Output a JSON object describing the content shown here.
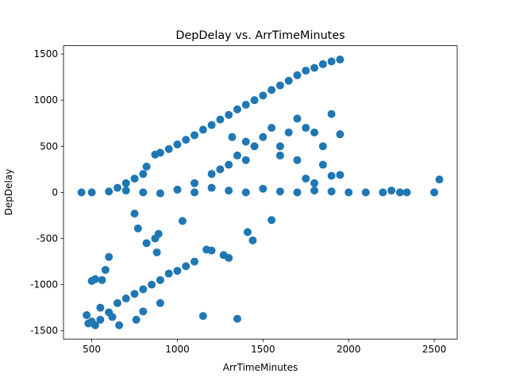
{
  "chart_data": {
    "type": "scatter",
    "title": "DepDelay vs. ArrTimeMinutes",
    "x_label": "ArrTimeMinutes",
    "y_label": "DepDelay",
    "color": "#1f77b4",
    "x": [
      870,
      900,
      950,
      1000,
      1050,
      1100,
      1150,
      1200,
      1250,
      1300,
      1350,
      1400,
      1450,
      1500,
      1550,
      1600,
      1650,
      1700,
      1750,
      1800,
      1850,
      1900,
      1950,
      650,
      700,
      750,
      800,
      820,
      440,
      500,
      600,
      700,
      800,
      900,
      1000,
      1100,
      1200,
      1300,
      1400,
      1500,
      1600,
      1700,
      1800,
      1900,
      2000,
      2100,
      2200,
      2250,
      2300,
      2340,
      2500,
      2530,
      1100,
      1200,
      1300,
      1350,
      1400,
      1450,
      1500,
      1550,
      1600,
      1650,
      1700,
      1750,
      1800,
      1850,
      1900,
      1950,
      1250,
      1320,
      1400,
      1600,
      1700,
      1800,
      1900,
      1950,
      1750,
      1850,
      750,
      770,
      820,
      870,
      890,
      880,
      1030,
      1550,
      1410,
      1440,
      1170,
      1200,
      1270,
      1300,
      600,
      580,
      500,
      520,
      560,
      470,
      500,
      520,
      550,
      600,
      650,
      700,
      750,
      800,
      850,
      900,
      950,
      1000,
      1050,
      1100,
      760,
      800,
      660,
      1150,
      1350,
      900,
      550,
      480,
      620
    ],
    "y": [
      410,
      430,
      470,
      520,
      570,
      620,
      680,
      730,
      790,
      840,
      900,
      950,
      1000,
      1050,
      1110,
      1160,
      1210,
      1270,
      1320,
      1350,
      1390,
      1420,
      1440,
      50,
      100,
      150,
      200,
      280,
      0,
      0,
      10,
      20,
      0,
      -10,
      30,
      0,
      50,
      20,
      0,
      40,
      10,
      0,
      20,
      10,
      0,
      0,
      0,
      20,
      0,
      0,
      0,
      140,
      100,
      200,
      300,
      400,
      350,
      500,
      600,
      700,
      500,
      650,
      800,
      700,
      650,
      500,
      850,
      630,
      250,
      600,
      550,
      400,
      350,
      100,
      180,
      190,
      150,
      300,
      -230,
      -390,
      -550,
      -500,
      -450,
      -650,
      -310,
      -300,
      -430,
      -520,
      -620,
      -630,
      -680,
      -710,
      -700,
      -840,
      -960,
      -940,
      -950,
      -1330,
      -1400,
      -1440,
      -1380,
      -1300,
      -1200,
      -1150,
      -1100,
      -1050,
      -1000,
      -950,
      -880,
      -850,
      -800,
      -750,
      -1380,
      -1290,
      -1440,
      -1340,
      -1370,
      -1200,
      -1250,
      -1420,
      -1350
    ],
    "xlim": [
      335,
      2634
    ],
    "ylim": [
      -1590,
      1590
    ],
    "xticks": [
      500,
      1000,
      1500,
      2000,
      2500
    ],
    "yticks": [
      -1500,
      -1000,
      -500,
      0,
      500,
      1000,
      1500
    ]
  }
}
